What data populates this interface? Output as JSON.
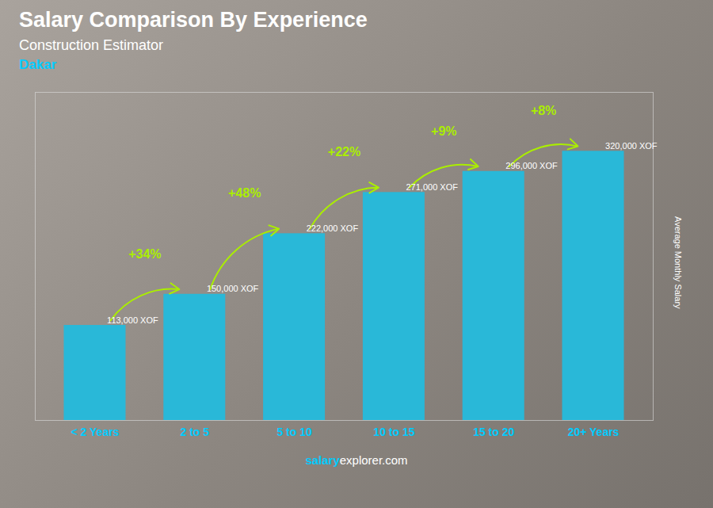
{
  "chart_data": {
    "type": "bar",
    "title": "Salary Comparison By Experience",
    "subtitle": "Construction Estimator",
    "annotations": [
      "Dakar",
      "salary",
      "explorer.com"
    ],
    "ylabel": "Average Monthly Salary",
    "categories": [
      "< 2 Years",
      "2 to 5",
      "5 to 10",
      "10 to 15",
      "15 to 20",
      "20+ Years"
    ],
    "values": [
      113000,
      150000,
      222000,
      271000,
      296000,
      320000
    ],
    "value_labels": [
      "113,000 XOF",
      "150,000 XOF",
      "222,000 XOF",
      "271,000 XOF",
      "296,000 XOF",
      "320,000 XOF"
    ],
    "pct_labels": [
      "+34%",
      "+48%",
      "+22%",
      "+9%",
      "+8%"
    ],
    "color": "#29b8d8",
    "ylim": [
      0,
      390000
    ],
    "data_labels": true,
    "tick_labels": "x",
    "grid": false
  }
}
